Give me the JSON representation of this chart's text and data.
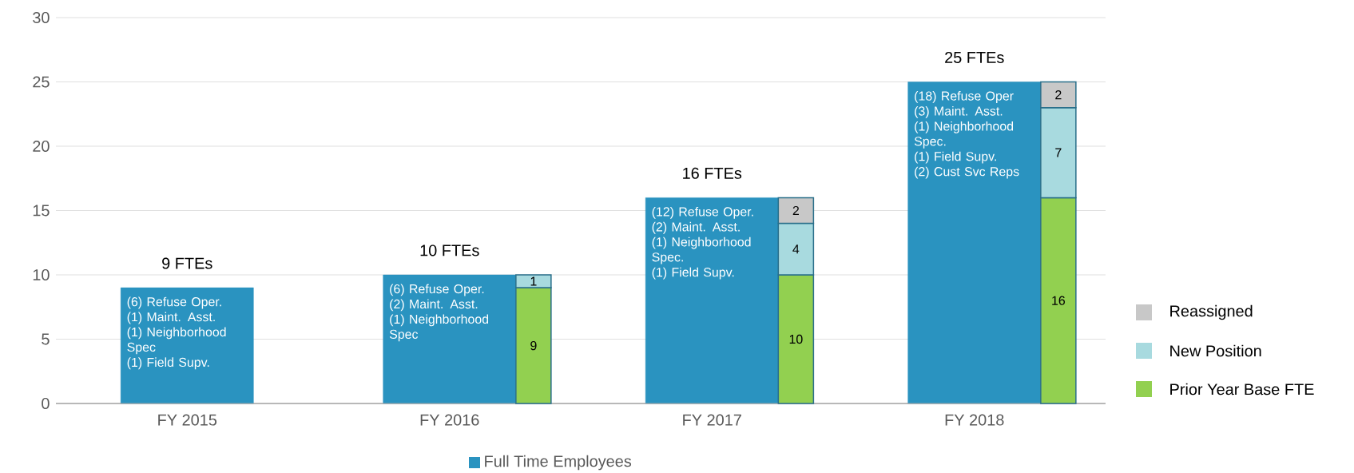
{
  "chart_data": [
    {
      "type": "bar",
      "categories": [
        null,
        null,
        null,
        null
      ],
      "series": [
        {
          "name": "Full Time Employees",
          "color": "#2a93c0",
          "values": [
            9,
            10,
            16,
            25
          ],
          "value_labels": [
            "9 FTEs",
            "10 FTEs",
            "16 FTEs",
            "25 FTEs"
          ]
        }
      ],
      "ylim": [
        0,
        30
      ],
      "yticks": [
        0,
        5,
        10,
        15,
        20,
        25,
        30
      ],
      "grid": "y",
      "legend": "bottom",
      "tick_labels": "y",
      "annotations": [
        "(6) Refuse Oper.\n(1) Maint. Asst.\n(1) Neighborhood Spec\n(1) Field Supv.",
        "(6) Refuse Oper.\n(2) Maint. Asst.\n(1) Neighborhood Spec",
        "(12) Refuse Oper.\n(2) Maint. Asst.\n(1) Neighborhood Spec.\n(1) Field Supv.",
        "(18) Refuse Oper\n(3) Maint. Asst.\n(1) Neighborhood Spec.\n(1) Field Supv.\n(2) Cust Svc Reps"
      ]
    },
    {
      "type": "bar",
      "categories": [
        "FY 2015",
        "FY 2016",
        "FY 2017",
        "FY 2018"
      ],
      "series": [
        {
          "name": "Prior Year Base FTE",
          "color": "#92d050",
          "values": [
            null,
            9,
            10,
            16
          ]
        },
        {
          "name": "New Position",
          "color": "#a8dadf",
          "values": [
            null,
            1,
            4,
            7
          ]
        },
        {
          "name": "Reassigned",
          "color": "#c8c8c8",
          "values": [
            null,
            null,
            2,
            2
          ]
        }
      ],
      "stacked": true,
      "data_labels": true,
      "ylim": [
        0,
        30
      ],
      "tick_labels": "x",
      "legend": "right"
    }
  ]
}
